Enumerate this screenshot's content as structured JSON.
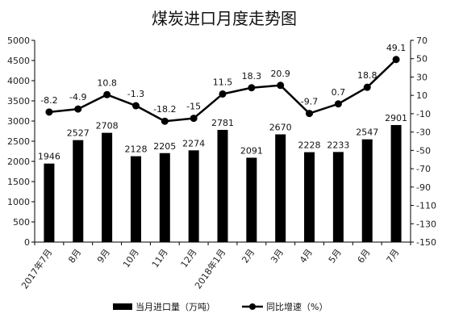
{
  "chart_data": {
    "type": "bar+line",
    "title": "煤炭进口月度走势图",
    "categories": [
      "2017年7月",
      "8月",
      "9月",
      "10月",
      "11月",
      "12月",
      "2018年1月",
      "2月",
      "3月",
      "4月",
      "5月",
      "6月",
      "7月"
    ],
    "series": [
      {
        "name": "当月进口量（万吨）",
        "type": "bar",
        "axis": "left",
        "values": [
          1946,
          2527,
          2708,
          2128,
          2205,
          2274,
          2781,
          2091,
          2670,
          2228,
          2233,
          2547,
          2901
        ],
        "labels": [
          "1946",
          "2527",
          "2708",
          "2128",
          "2205",
          "2274",
          "2781",
          "2091",
          "2670",
          "2228",
          "2233",
          "2547",
          "2901"
        ]
      },
      {
        "name": "同比增速（%）",
        "type": "line",
        "axis": "right",
        "values": [
          -8.2,
          -4.9,
          10.8,
          -1.3,
          -18.2,
          -15,
          11.5,
          18.3,
          20.9,
          -9.7,
          0.7,
          18.8,
          49.1
        ],
        "labels": [
          "-8.2",
          "-4.9",
          "10.8",
          "-1.3",
          "-18.2",
          "-15",
          "11.5",
          "18.3",
          "20.9",
          "-9.7",
          "0.7",
          "18.8",
          "49.1"
        ]
      }
    ],
    "y_left": {
      "min": 0,
      "max": 5000,
      "ticks": [
        "0",
        "500",
        "1000",
        "1500",
        "2000",
        "2500",
        "3000",
        "3500",
        "4000",
        "4500",
        "5000"
      ]
    },
    "y_right": {
      "min": -150,
      "max": 70,
      "ticks": [
        "-150",
        "-130",
        "-110",
        "-90",
        "-70",
        "-50",
        "-30",
        "-10",
        "10",
        "30",
        "50",
        "70"
      ]
    },
    "grid": false,
    "legend_position": "bottom",
    "colors": {
      "bar": "#000000",
      "line": "#000000",
      "axis": "#000000"
    }
  }
}
